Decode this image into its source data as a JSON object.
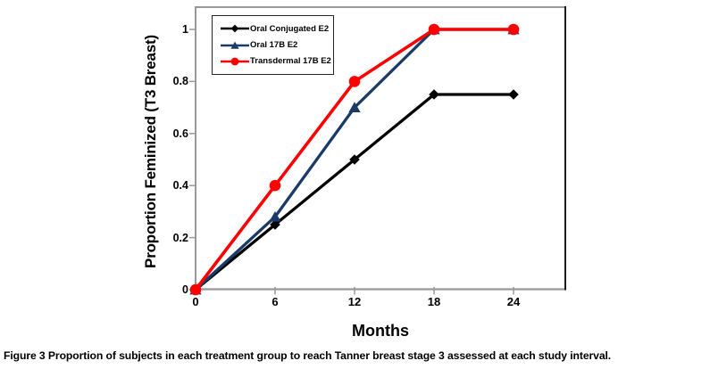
{
  "figure": {
    "caption_label": "Figure 3",
    "caption_text": "Proportion of subjects in each treatment group to reach Tanner breast stage 3 assessed at each study interval."
  },
  "chart_data": {
    "type": "line",
    "x": [
      0,
      6,
      12,
      18,
      24
    ],
    "xlabel": "Months",
    "ylabel": "Proportion Feminized (T3 Breast)",
    "xlim": [
      0,
      28
    ],
    "ylim": [
      0,
      1.09
    ],
    "xticks": [
      0,
      6,
      12,
      18,
      24
    ],
    "xtick_labels": [
      "0",
      "6",
      "12",
      "18",
      "24"
    ],
    "yticks": [
      0,
      0.2,
      0.4,
      0.6,
      0.8,
      1
    ],
    "ytick_labels": [
      "0",
      "0.2",
      "0.4",
      "0.6",
      "0.8",
      "1"
    ],
    "grid": false,
    "legend_position": "top-left",
    "axis_color": "#999999",
    "frame_right_color": "#1a1a1a",
    "series": [
      {
        "name": "Oral Conjugated E2",
        "color": "#000000",
        "marker": "diamond",
        "values": [
          0,
          0.25,
          0.5,
          0.75,
          0.75
        ]
      },
      {
        "name": "Oral 17B E2",
        "color": "#1A3A68",
        "marker": "triangle",
        "values": [
          0,
          0.28,
          0.7,
          1,
          1
        ]
      },
      {
        "name": "Transdermal 17B E2",
        "color": "#FF0000",
        "marker": "circle",
        "values": [
          0,
          0.4,
          0.8,
          1,
          1
        ]
      }
    ]
  }
}
